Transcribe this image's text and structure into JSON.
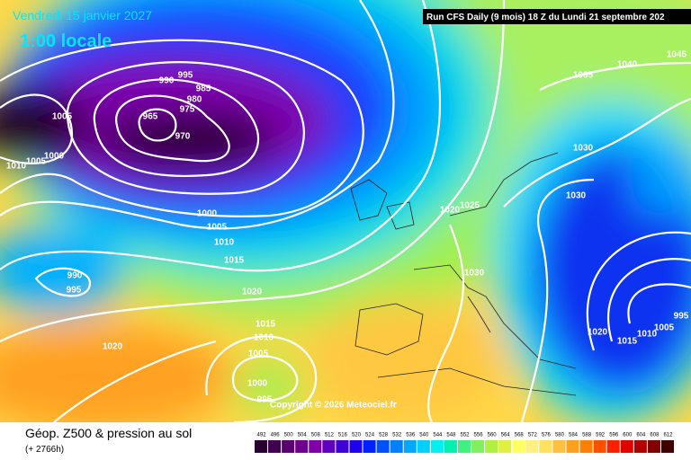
{
  "header": {
    "date": "Vendredi 15 janvier 2027",
    "time": "1:00 locale",
    "run": "Run CFS Daily (9 mois) 18 Z du Lundi 21 septembre 202"
  },
  "pressure_labels": [
    995,
    990,
    985,
    980,
    975,
    965,
    970,
    1005,
    1000,
    1005,
    1010,
    1000,
    1005,
    1010,
    1015,
    1020,
    990,
    995,
    1015,
    1010,
    1005,
    1020,
    1000,
    995,
    1035,
    1040,
    1045,
    1030,
    1030,
    1020,
    1025,
    1030,
    1020,
    1015,
    1010,
    1005,
    995
  ],
  "copyright": "Copyright © 2026 Meteociel.fr",
  "footer": {
    "title": "Géop. Z500 & pression au sol",
    "subtitle": "(+ 2766h)"
  },
  "scale": {
    "values": [
      492,
      496,
      500,
      504,
      508,
      512,
      516,
      520,
      524,
      528,
      532,
      536,
      540,
      544,
      548,
      552,
      556,
      560,
      564,
      568,
      572,
      576,
      580,
      584,
      588,
      592,
      596,
      600,
      604,
      608,
      612
    ],
    "colors": [
      "#2a0030",
      "#400050",
      "#5a0070",
      "#700090",
      "#8000a8",
      "#6000c0",
      "#4000d8",
      "#2000f0",
      "#0020ff",
      "#0050ff",
      "#0080ff",
      "#00a8ff",
      "#00d0ff",
      "#00f0f0",
      "#00f0b0",
      "#40f080",
      "#80f060",
      "#b0f040",
      "#e0f040",
      "#ffff60",
      "#fff080",
      "#ffe060",
      "#ffc040",
      "#ffa020",
      "#ff8000",
      "#ff5000",
      "#ff2000",
      "#e00000",
      "#b00000",
      "#800000",
      "#400000"
    ]
  }
}
